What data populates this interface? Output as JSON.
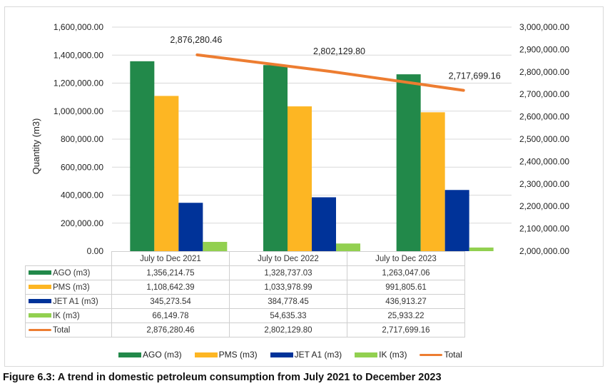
{
  "chart_data": {
    "type": "bar",
    "title": "",
    "categories": [
      "July to Dec 2021",
      "July to Dec 2022",
      "July to Dec 2023"
    ],
    "series": [
      {
        "name": "AGO (m3)",
        "type": "bar",
        "axis": "left",
        "color": "#22894a",
        "values": [
          1356214.75,
          1328737.03,
          1263047.06
        ],
        "display": [
          "1,356,214.75",
          "1,328,737.03",
          "1,263,047.06"
        ]
      },
      {
        "name": "PMS (m3)",
        "type": "bar",
        "axis": "left",
        "color": "#fdb623",
        "values": [
          1108642.39,
          1033978.99,
          991805.61
        ],
        "display": [
          "1,108,642.39",
          "1,033,978.99",
          "991,805.61"
        ]
      },
      {
        "name": "JET A1 (m3)",
        "type": "bar",
        "axis": "left",
        "color": "#003399",
        "values": [
          345273.54,
          384778.45,
          436913.27
        ],
        "display": [
          "345,273.54",
          "384,778.45",
          "436,913.27"
        ]
      },
      {
        "name": "IK (m3)",
        "type": "bar",
        "axis": "left",
        "color": "#92d050",
        "values": [
          66149.78,
          54635.33,
          25933.22
        ],
        "display": [
          "66,149.78",
          "54,635.33",
          "25,933.22"
        ]
      },
      {
        "name": "Total",
        "type": "line",
        "axis": "right",
        "color": "#ed7d31",
        "values": [
          2876280.46,
          2802129.8,
          2717699.16
        ],
        "display": [
          "2,876,280.46",
          "2,802,129.80",
          "2,717,699.16"
        ]
      }
    ],
    "ylabel": "Quantity (m3)",
    "xlabel": "",
    "ylim": [
      0,
      1600000
    ],
    "y_ticks": [
      "0.00",
      "200,000.00",
      "400,000.00",
      "600,000.00",
      "800,000.00",
      "1,000,000.00",
      "1,200,000.00",
      "1,400,000.00",
      "1,600,000.00"
    ],
    "y2lim": [
      2000000,
      3000000
    ],
    "y2_ticks": [
      "2,000,000.00",
      "2,100,000.00",
      "2,200,000.00",
      "2,300,000.00",
      "2,400,000.00",
      "2,500,000.00",
      "2,600,000.00",
      "2,700,000.00",
      "2,800,000.00",
      "2,900,000.00",
      "3,000,000.00"
    ],
    "grid": true,
    "legend": "bottom",
    "data_table": true
  },
  "legend_items": [
    "AGO (m3)",
    "PMS (m3)",
    "JET A1 (m3)",
    "IK (m3)",
    "Total"
  ],
  "caption": "Figure 6.3: A trend in domestic petroleum consumption from July 2021 to December 2023"
}
